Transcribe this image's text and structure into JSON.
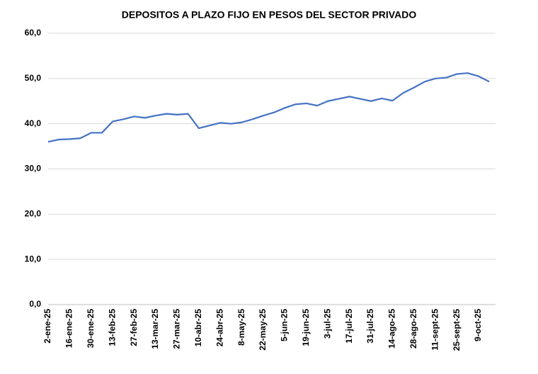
{
  "chart_data": {
    "type": "line",
    "title": "DEPOSITOS  A PLAZO FIJO EN PESOS DEL SECTOR PRIVADO",
    "categories": [
      "2-ene-25",
      null,
      "16-ene-25",
      null,
      "30-ene-25",
      null,
      "13-feb-25",
      null,
      "27-feb-25",
      null,
      "13-mar-25",
      null,
      "27-mar-25",
      null,
      "10-abr-25",
      null,
      "24-abr-25",
      null,
      "8-may-25",
      null,
      "22-may-25",
      null,
      "5-jun-25",
      null,
      "19-jun-25",
      null,
      "3-jul-25",
      null,
      "17-jul-25",
      null,
      "31-jul-25",
      null,
      "14-ago-25",
      null,
      "28-ago-25",
      null,
      "11-sept-25",
      null,
      "25-sept-25",
      null,
      "9-oct-25",
      null
    ],
    "values": [
      36.0,
      36.5,
      36.6,
      36.8,
      38.0,
      38.0,
      40.5,
      41.0,
      41.6,
      41.3,
      41.8,
      42.2,
      42.0,
      42.2,
      39.0,
      39.6,
      40.2,
      40.0,
      40.3,
      41.0,
      41.8,
      42.5,
      43.5,
      44.3,
      44.5,
      44.0,
      45.0,
      45.5,
      46.0,
      45.5,
      45.0,
      45.6,
      45.1,
      46.8,
      48.0,
      49.3,
      50.0,
      50.2,
      51.0,
      51.2,
      50.5,
      49.3
    ],
    "color": "#4472c4",
    "ylim": [
      0,
      60
    ],
    "yticks": [
      {
        "value": 0,
        "label": "0,0"
      },
      {
        "value": 10,
        "label": "10,0"
      },
      {
        "value": 20,
        "label": "20,0"
      },
      {
        "value": 30,
        "label": "30,0"
      },
      {
        "value": 40,
        "label": "40,0"
      },
      {
        "value": 50,
        "label": "50,0"
      },
      {
        "value": 60,
        "label": "60,0"
      }
    ],
    "grid": true
  }
}
